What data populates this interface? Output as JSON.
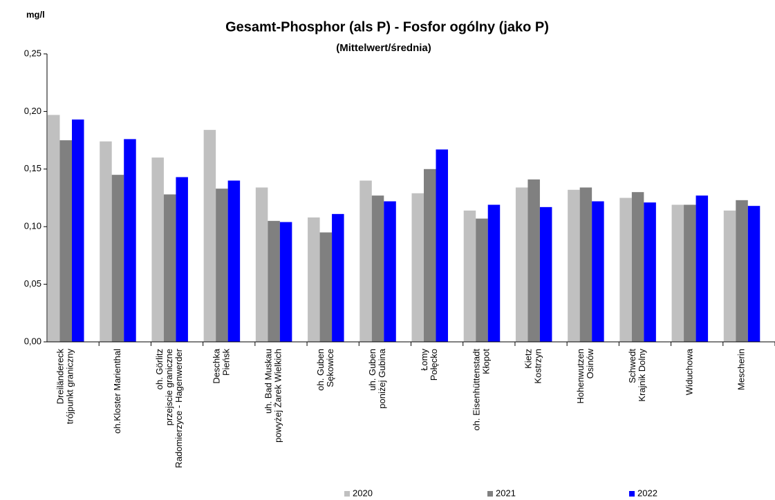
{
  "chart_data": {
    "type": "bar",
    "title": "Gesamt-Phosphor (als P) - Fosfor ogólny (jako P)",
    "subtitle": "(Mittelwert/średnia)",
    "y_label": "mg/l",
    "categories": [
      [
        "Dreiländereck",
        "trójpunkt graniczny"
      ],
      [
        "oh.Kloster Marienthal"
      ],
      [
        "oh. Görlitz",
        "przejscie graniczne",
        "Radomierzyce - Hagenwerder"
      ],
      [
        "Deschka",
        "Pieńsk"
      ],
      [
        "uh. Bad Muskau",
        "powyżej Żarek Wielkich"
      ],
      [
        "oh. Guben",
        "Sękowice"
      ],
      [
        "uh. Guben",
        "poniżej Gubina"
      ],
      [
        "Łomy",
        "Połęcko"
      ],
      [
        "oh. Eisenhüttenstadt",
        "Kłopot"
      ],
      [
        "Kietz",
        "Kostrzyn"
      ],
      [
        "Hohenwutzen",
        "Osinów"
      ],
      [
        "Schwedt",
        "Krajnik Dolny"
      ],
      [
        "Widuchowa"
      ],
      [
        "Mescherin"
      ]
    ],
    "series": [
      {
        "name": "2020",
        "color": "#c0c0c0",
        "values": [
          0.197,
          0.174,
          0.16,
          0.184,
          0.134,
          0.108,
          0.14,
          0.129,
          0.114,
          0.134,
          0.132,
          0.125,
          0.119,
          0.114
        ]
      },
      {
        "name": "2021",
        "color": "#808080",
        "values": [
          0.175,
          0.145,
          0.128,
          0.133,
          0.105,
          0.095,
          0.127,
          0.15,
          0.107,
          0.141,
          0.134,
          0.13,
          0.119,
          0.123
        ]
      },
      {
        "name": "2022",
        "color": "#0000ff",
        "values": [
          0.193,
          0.176,
          0.143,
          0.14,
          0.104,
          0.111,
          0.122,
          0.167,
          0.119,
          0.117,
          0.122,
          0.121,
          0.127,
          0.118
        ]
      }
    ],
    "ylim": [
      0,
      0.25
    ],
    "yticks": [
      {
        "value": 0,
        "label": "0,00"
      },
      {
        "value": 0.05,
        "label": "0,05"
      },
      {
        "value": 0.1,
        "label": "0,10"
      },
      {
        "value": 0.15,
        "label": "0,15"
      },
      {
        "value": 0.2,
        "label": "0,20"
      },
      {
        "value": 0.25,
        "label": "0,25"
      }
    ],
    "legend": "bottom"
  }
}
